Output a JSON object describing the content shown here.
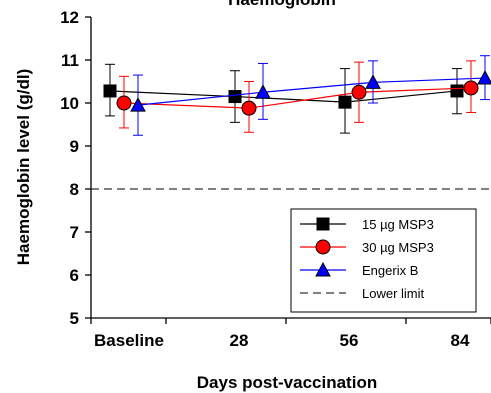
{
  "chart_data": {
    "type": "line",
    "title": "Haemoglobin",
    "xlabel": "Days post-vaccination",
    "ylabel": "Haemoglobin level (g/dl)",
    "categories": [
      "Baseline",
      "28",
      "56",
      "84"
    ],
    "ylim": [
      5,
      12
    ],
    "yticks": [
      "5",
      "6",
      "7",
      "8",
      "9",
      "10",
      "11",
      "12"
    ],
    "grid": false,
    "legend_position": "bottom-right",
    "series": [
      {
        "name": "15 µg MSP3",
        "marker": "square",
        "color": "#000000",
        "values": [
          10.28,
          10.15,
          10.02,
          10.28
        ],
        "error_low": [
          9.7,
          9.55,
          9.3,
          9.75
        ],
        "error_high": [
          10.9,
          10.75,
          10.8,
          10.8
        ]
      },
      {
        "name": "30 µg MSP3",
        "marker": "circle",
        "color": "#ff0000",
        "values": [
          10.0,
          9.88,
          10.25,
          10.35
        ],
        "error_low": [
          9.42,
          9.32,
          9.55,
          9.78
        ],
        "error_high": [
          10.62,
          10.5,
          10.95,
          10.98
        ]
      },
      {
        "name": "Engerix B",
        "marker": "triangle",
        "color": "#0000ff",
        "values": [
          9.95,
          10.25,
          10.48,
          10.58
        ],
        "error_low": [
          9.25,
          9.62,
          10.0,
          10.08
        ],
        "error_high": [
          10.65,
          10.92,
          10.98,
          11.1
        ]
      }
    ],
    "reference_line": {
      "name": "Lower limit",
      "value": 8,
      "style": "dashed",
      "color": "#000000"
    }
  }
}
